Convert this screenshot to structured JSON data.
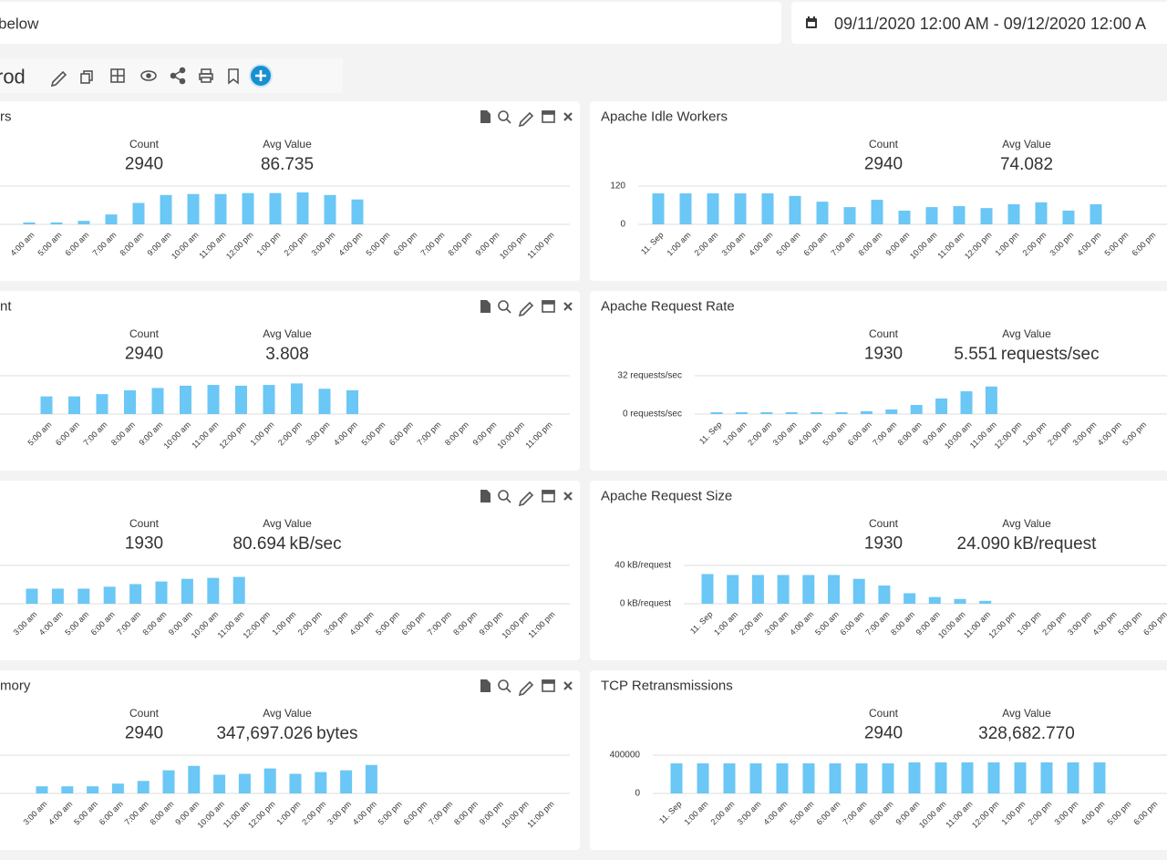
{
  "header": {
    "search_text": "below",
    "date_range": "09/11/2020 12:00 AM - 09/12/2020 12:00 A"
  },
  "dashboard": {
    "title": "rod"
  },
  "panels": [
    {
      "title": "rs",
      "count_label": "Count",
      "count": "2940",
      "avg_label": "Avg Value",
      "avg": "86.735",
      "chart": {
        "type": "bar",
        "color": "#6bc7f5",
        "ylim": [
          0,
          120
        ],
        "categories": [
          "4:00 am",
          "5:00 am",
          "6:00 am",
          "7:00 am",
          "8:00 am",
          "9:00 am",
          "10:00 am",
          "11:00 am",
          "12:00 pm",
          "1:00 pm",
          "2:00 pm",
          "3:00 pm",
          "4:00 pm",
          "5:00 pm",
          "6:00 pm",
          "7:00 pm",
          "8:00 pm",
          "9:00 pm",
          "10:00 pm",
          "11:00 pm"
        ],
        "values": [
          6,
          6,
          11,
          31,
          67,
          92,
          95,
          95,
          98,
          98,
          100,
          92,
          78,
          null,
          null,
          null,
          null,
          null,
          null,
          null
        ]
      }
    },
    {
      "title": "Apache Idle Workers",
      "count_label": "Count",
      "count": "2940",
      "avg_label": "Avg Value",
      "avg": "74.082",
      "chart": {
        "type": "bar",
        "color": "#6bc7f5",
        "ylim": [
          0,
          120
        ],
        "yticks": [
          0,
          120
        ],
        "categories": [
          "11. Sep",
          "1:00 am",
          "2:00 am",
          "3:00 am",
          "4:00 am",
          "5:00 am",
          "6:00 am",
          "7:00 am",
          "8:00 am",
          "9:00 am",
          "10:00 am",
          "11:00 am",
          "12:00 pm",
          "1:00 pm",
          "2:00 pm",
          "3:00 pm",
          "4:00 pm",
          "5:00 pm",
          "6:00 pm"
        ],
        "values": [
          97,
          97,
          97,
          97,
          97,
          89,
          71,
          54,
          77,
          43,
          54,
          57,
          51,
          63,
          69,
          43,
          63,
          null,
          null
        ]
      }
    },
    {
      "title": "nt",
      "count_label": "Count",
      "count": "2940",
      "avg_label": "Avg Value",
      "avg": "3.808",
      "chart": {
        "type": "bar",
        "color": "#6bc7f5",
        "ylim": [
          0,
          5
        ],
        "categories": [
          "5:00 am",
          "6:00 am",
          "7:00 am",
          "8:00 am",
          "9:00 am",
          "10:00 am",
          "11:00 am",
          "12:00 pm",
          "1:00 pm",
          "2:00 pm",
          "3:00 pm",
          "4:00 pm",
          "5:00 pm",
          "6:00 pm",
          "7:00 pm",
          "8:00 pm",
          "9:00 pm",
          "10:00 pm",
          "11:00 pm"
        ],
        "values": [
          2.3,
          2.3,
          2.6,
          3.1,
          3.4,
          3.7,
          3.8,
          3.7,
          3.8,
          4.0,
          3.3,
          3.1,
          null,
          null,
          null,
          null,
          null,
          null,
          null
        ]
      }
    },
    {
      "title": "Apache Request Rate",
      "count_label": "Count",
      "count": "1930",
      "avg_label": "Avg Value",
      "avg": "5.551",
      "unit": "requests/sec",
      "chart": {
        "type": "bar",
        "color": "#6bc7f5",
        "ylim": [
          0,
          32
        ],
        "yticks": [
          {
            "value": 0,
            "label": "0 requests/sec"
          },
          {
            "value": 32,
            "label": "32 requests/sec"
          }
        ],
        "categories": [
          "11. Sep",
          "1:00 am",
          "2:00 am",
          "3:00 am",
          "4:00 am",
          "5:00 am",
          "6:00 am",
          "7:00 am",
          "8:00 am",
          "9:00 am",
          "10:00 am",
          "11:00 am",
          "12:00 pm",
          "1:00 pm",
          "2:00 pm",
          "3:00 pm",
          "4:00 pm",
          "5:00 pm"
        ],
        "values": [
          1.5,
          1.5,
          1.5,
          1.5,
          1.5,
          1.5,
          2.3,
          3.8,
          7.6,
          13,
          19,
          23,
          null,
          null,
          null,
          null,
          null,
          null
        ]
      }
    },
    {
      "count_label": "Count",
      "count": "1930",
      "avg_label": "Avg Value",
      "avg": "80.694",
      "unit": "kB/sec",
      "chart": {
        "type": "bar",
        "color": "#6bc7f5",
        "ylim": [
          0,
          160
        ],
        "categories": [
          "3:00 am",
          "4:00 am",
          "5:00 am",
          "6:00 am",
          "7:00 am",
          "8:00 am",
          "9:00 am",
          "10:00 am",
          "11:00 am",
          "12:00 pm",
          "1:00 pm",
          "2:00 pm",
          "3:00 pm",
          "4:00 pm",
          "5:00 pm",
          "6:00 pm",
          "7:00 pm",
          "8:00 pm",
          "9:00 pm",
          "10:00 pm",
          "11:00 pm"
        ],
        "values": [
          63,
          63,
          63,
          71,
          82,
          93,
          104,
          108,
          112,
          null,
          null,
          null,
          null,
          null,
          null,
          null,
          null,
          null,
          null,
          null,
          null
        ]
      }
    },
    {
      "title": "Apache Request Size",
      "count_label": "Count",
      "count": "1930",
      "avg_label": "Avg Value",
      "avg": "24.090",
      "unit": "kB/request",
      "chart": {
        "type": "bar",
        "color": "#6bc7f5",
        "ylim": [
          0,
          40
        ],
        "yticks": [
          {
            "value": 0,
            "label": "0 kB/request"
          },
          {
            "value": 40,
            "label": "40 kB/request"
          }
        ],
        "categories": [
          "11. Sep",
          "1:00 am",
          "2:00 am",
          "3:00 am",
          "4:00 am",
          "5:00 am",
          "6:00 am",
          "7:00 am",
          "8:00 am",
          "9:00 am",
          "10:00 am",
          "11:00 am",
          "12:00 pm",
          "1:00 pm",
          "2:00 pm",
          "3:00 pm",
          "4:00 pm",
          "5:00 pm",
          "6:00 pm"
        ],
        "values": [
          31,
          30,
          30,
          30,
          30,
          30,
          26,
          19,
          11,
          7,
          5,
          3,
          null,
          null,
          null,
          null,
          null,
          null,
          null
        ]
      }
    },
    {
      "title": "mory",
      "count_label": "Count",
      "count": "2940",
      "avg_label": "Avg Value",
      "avg": "347,697.026",
      "unit": "bytes",
      "chart": {
        "type": "bar",
        "color": "#6bc7f5",
        "ylim": [
          0,
          500000
        ],
        "categories": [
          "3:00 am",
          "4:00 am",
          "5:00 am",
          "6:00 am",
          "7:00 am",
          "8:00 am",
          "9:00 am",
          "10:00 am",
          "11:00 am",
          "12:00 pm",
          "1:00 pm",
          "2:00 pm",
          "3:00 pm",
          "4:00 pm",
          "5:00 pm",
          "6:00 pm",
          "7:00 pm",
          "8:00 pm",
          "9:00 pm",
          "10:00 pm",
          "11:00 pm"
        ],
        "values": [
          93000,
          93000,
          93000,
          128000,
          163000,
          302000,
          360000,
          244000,
          256000,
          326000,
          256000,
          279000,
          302000,
          372000,
          null,
          null,
          null,
          null,
          null,
          null,
          null
        ]
      }
    },
    {
      "title": "TCP Retransmissions",
      "count_label": "Count",
      "count": "2940",
      "avg_label": "Avg Value",
      "avg": "328,682.770",
      "chart": {
        "type": "bar",
        "color": "#6bc7f5",
        "ylim": [
          0,
          400000
        ],
        "yticks": [
          0,
          400000
        ],
        "categories": [
          "11. Sep",
          "1:00 am",
          "2:00 am",
          "3:00 am",
          "4:00 am",
          "5:00 am",
          "6:00 am",
          "7:00 am",
          "8:00 am",
          "9:00 am",
          "10:00 am",
          "11:00 am",
          "12:00 pm",
          "1:00 pm",
          "2:00 pm",
          "3:00 pm",
          "4:00 pm",
          "5:00 pm",
          "6:00 pm"
        ],
        "values": [
          314000,
          314000,
          314000,
          314000,
          314000,
          314000,
          314000,
          314000,
          314000,
          324000,
          324000,
          324000,
          324000,
          324000,
          324000,
          324000,
          324000,
          null,
          null
        ]
      }
    }
  ]
}
